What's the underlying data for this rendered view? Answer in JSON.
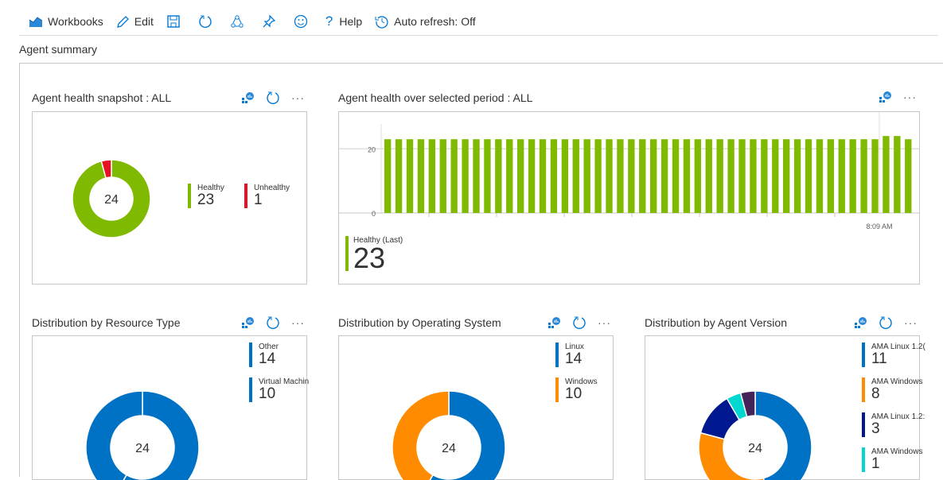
{
  "toolbar": {
    "workbooks": "Workbooks",
    "edit": "Edit",
    "help": "Help",
    "auto_refresh": "Auto refresh: Off"
  },
  "section_title": "Agent summary",
  "panels": {
    "snapshot": {
      "title": "Agent health snapshot : ALL"
    },
    "period": {
      "title": "Agent health over selected period : ALL",
      "tile_label": "Healthy (Last)",
      "tile_value": "23"
    },
    "resource": {
      "title": "Distribution by Resource Type"
    },
    "os": {
      "title": "Distribution by Operating System"
    },
    "version": {
      "title": "Distribution by Agent Version"
    }
  },
  "chart_data": [
    {
      "type": "pie",
      "donut": true,
      "center_label": "24",
      "slices": [
        {
          "label": "Healthy",
          "value": 23,
          "color": "#7fba00"
        },
        {
          "label": "Unhealthy",
          "value": 1,
          "color": "#e81123"
        }
      ]
    },
    {
      "type": "bar",
      "yticks": [
        "0",
        "20"
      ],
      "xtick_label": "8:09 AM",
      "color": "#7fba00",
      "values": [
        23,
        23,
        23,
        23,
        23,
        23,
        23,
        23,
        23,
        23,
        23,
        23,
        23,
        23,
        23,
        23,
        23,
        23,
        23,
        23,
        23,
        23,
        23,
        23,
        23,
        23,
        23,
        23,
        23,
        23,
        23,
        23,
        23,
        23,
        23,
        23,
        23,
        23,
        23,
        23,
        23,
        23,
        23,
        23,
        23,
        24,
        24,
        23
      ],
      "ylim": [
        0,
        28
      ]
    },
    {
      "type": "pie",
      "donut": true,
      "center_label": "24",
      "slices": [
        {
          "label": "Other",
          "value": 14,
          "color": "#0072c6"
        },
        {
          "label": "Virtual Machin",
          "value": 10,
          "color": "#0072c6"
        }
      ]
    },
    {
      "type": "pie",
      "donut": true,
      "center_label": "24",
      "slices": [
        {
          "label": "Linux",
          "value": 14,
          "color": "#0072c6"
        },
        {
          "label": "Windows",
          "value": 10,
          "color": "#ff8c00"
        }
      ]
    },
    {
      "type": "pie",
      "donut": true,
      "center_label": "24",
      "slices": [
        {
          "label": "AMA Linux 1.2(",
          "value": 11,
          "color": "#0072c6"
        },
        {
          "label": "AMA Windows",
          "value": 8,
          "color": "#ff8c00"
        },
        {
          "label": "AMA Linux 1.2:",
          "value": 3,
          "color": "#00188f"
        },
        {
          "label": "AMA Windows",
          "value": 1,
          "color": "#00d7d0"
        },
        {
          "value": 1,
          "color": "#442359"
        }
      ]
    }
  ]
}
